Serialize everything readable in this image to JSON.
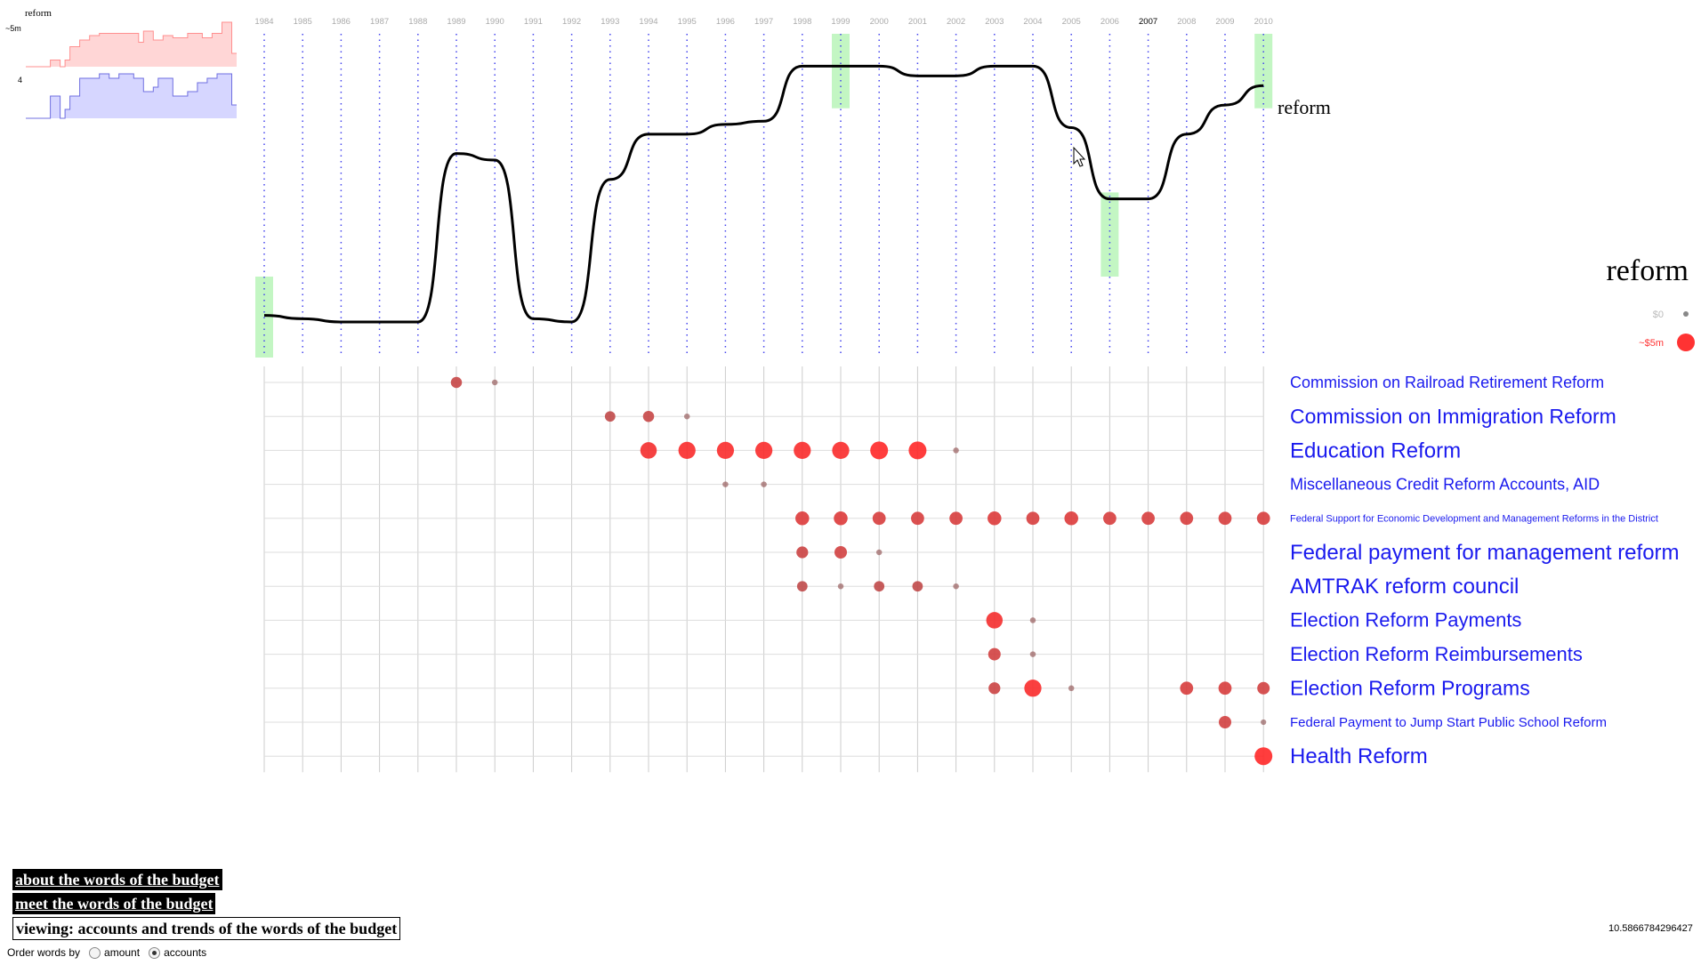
{
  "word": "reform",
  "sparklines": {
    "amount_label": "~5m",
    "count_label": "4",
    "amount_color": "#ff8f8f",
    "amount_fill": "#ffd6d6",
    "count_color": "#6f6fe0",
    "count_fill": "#d6d6ff",
    "amount_values": [
      0,
      0,
      0,
      0,
      0,
      0.15,
      0.15,
      0,
      0.15,
      0.45,
      0.45,
      0.6,
      0.6,
      0.7,
      0.7,
      0.75,
      0.75,
      0.75,
      0.75,
      0.75,
      0.75,
      0.75,
      0.75,
      0.55,
      0.8,
      0.8,
      0.6,
      0.6,
      0.7,
      0.7,
      0.65,
      0.65,
      0.65,
      0.75,
      0.75,
      0.75,
      0.65,
      0.65,
      0.75,
      0.75,
      1.0,
      1.0,
      0.3
    ],
    "count_values": [
      0,
      0,
      0,
      0,
      0,
      0.5,
      0.5,
      0,
      0.2,
      0.5,
      0.5,
      0.9,
      0.9,
      0.9,
      0.9,
      1.0,
      1.0,
      0.9,
      0.9,
      1.0,
      1.0,
      1.0,
      0.9,
      0.9,
      0.6,
      0.6,
      0.7,
      0.9,
      0.9,
      0.9,
      0.5,
      0.5,
      0.5,
      0.6,
      0.6,
      0.8,
      0.8,
      0.9,
      0.9,
      1.0,
      1.0,
      1.0,
      0.3
    ]
  },
  "legend": {
    "zero_label": "$0",
    "max_label": "~$5m",
    "zero_color": "#bbbbbb",
    "max_color": "#ff3333"
  },
  "selected_year": "2007",
  "nav": {
    "about": "about the words of the budget",
    "meet": "meet the words of the budget",
    "viewing": "viewing: accounts and trends of the words of the budget"
  },
  "order": {
    "label": "Order words by",
    "options": [
      "amount",
      "accounts"
    ],
    "selected": "accounts"
  },
  "readout": "10.5866784296427",
  "chart_data": [
    {
      "type": "line",
      "title": "reform",
      "x": [
        1984,
        1985,
        1986,
        1987,
        1988,
        1989,
        1990,
        1991,
        1992,
        1993,
        1994,
        1995,
        1996,
        1997,
        1998,
        1999,
        2000,
        2001,
        2002,
        2003,
        2004,
        2005,
        2006,
        2007,
        2008,
        2009,
        2010
      ],
      "y": [
        0.13,
        0.12,
        0.11,
        0.11,
        0.11,
        0.63,
        0.61,
        0.12,
        0.11,
        0.55,
        0.69,
        0.69,
        0.72,
        0.73,
        0.9,
        0.9,
        0.9,
        0.87,
        0.87,
        0.9,
        0.9,
        0.71,
        0.49,
        0.49,
        0.69,
        0.78,
        0.84
      ],
      "highlight_bands": [
        {
          "year": 1984,
          "from": 0.0,
          "to": 0.25
        },
        {
          "year": 1999,
          "from": 0.77,
          "to": 1.0
        },
        {
          "year": 2006,
          "from": 0.25,
          "to": 0.51
        },
        {
          "year": 2010,
          "from": 0.77,
          "to": 1.0
        }
      ],
      "grid": "dotted vertical per year"
    },
    {
      "type": "scatter",
      "years": [
        1984,
        1985,
        1986,
        1987,
        1988,
        1989,
        1990,
        1991,
        1992,
        1993,
        1994,
        1995,
        1996,
        1997,
        1998,
        1999,
        2000,
        2001,
        2002,
        2003,
        2004,
        2005,
        2006,
        2007,
        2008,
        2009,
        2010
      ],
      "size_scale": "amount, $0 to ~$5m",
      "rows": [
        {
          "label": "Commission on Railroad Retirement Reform",
          "points": [
            [
              1989,
              0.5
            ],
            [
              1990,
              0.1
            ]
          ]
        },
        {
          "label": "Commission on Immigration Reform",
          "points": [
            [
              1993,
              0.45
            ],
            [
              1994,
              0.5
            ],
            [
              1995,
              0.1
            ]
          ]
        },
        {
          "label": "Education Reform",
          "points": [
            [
              1994,
              0.9
            ],
            [
              1995,
              0.95
            ],
            [
              1996,
              0.95
            ],
            [
              1997,
              0.95
            ],
            [
              1998,
              0.95
            ],
            [
              1999,
              0.95
            ],
            [
              2000,
              1.0
            ],
            [
              2001,
              1.0
            ],
            [
              2002,
              0.1
            ]
          ]
        },
        {
          "label": "Miscellaneous Credit Reform Accounts, AID",
          "points": [
            [
              1996,
              0.1
            ],
            [
              1997,
              0.1
            ]
          ]
        },
        {
          "label": "Federal Support for Economic Development and Management Reforms in the District",
          "points": [
            [
              1998,
              0.7
            ],
            [
              1999,
              0.7
            ],
            [
              2000,
              0.65
            ],
            [
              2001,
              0.65
            ],
            [
              2002,
              0.65
            ],
            [
              2003,
              0.7
            ],
            [
              2004,
              0.65
            ],
            [
              2005,
              0.7
            ],
            [
              2006,
              0.65
            ],
            [
              2007,
              0.65
            ],
            [
              2008,
              0.65
            ],
            [
              2009,
              0.65
            ],
            [
              2010,
              0.65
            ]
          ]
        },
        {
          "label": "Federal payment for management reform",
          "points": [
            [
              1998,
              0.55
            ],
            [
              1999,
              0.6
            ],
            [
              2000,
              0.1
            ]
          ]
        },
        {
          "label": "AMTRAK reform council",
          "points": [
            [
              1998,
              0.45
            ],
            [
              1999,
              0.1
            ],
            [
              2000,
              0.45
            ],
            [
              2001,
              0.45
            ],
            [
              2002,
              0.1
            ]
          ]
        },
        {
          "label": "Election Reform Payments",
          "points": [
            [
              2003,
              0.9
            ],
            [
              2004,
              0.1
            ]
          ]
        },
        {
          "label": "Election Reform Reimbursements",
          "points": [
            [
              2003,
              0.6
            ],
            [
              2004,
              0.1
            ]
          ]
        },
        {
          "label": "Election Reform Programs",
          "points": [
            [
              2003,
              0.55
            ],
            [
              2004,
              0.95
            ],
            [
              2005,
              0.1
            ],
            [
              2008,
              0.65
            ],
            [
              2009,
              0.65
            ],
            [
              2010,
              0.6
            ]
          ]
        },
        {
          "label": "Federal Payment to Jump Start Public School Reform",
          "points": [
            [
              2009,
              0.6
            ],
            [
              2010,
              0.08
            ]
          ]
        },
        {
          "label": "Health Reform",
          "points": [
            [
              2010,
              1.0
            ]
          ]
        }
      ]
    }
  ]
}
